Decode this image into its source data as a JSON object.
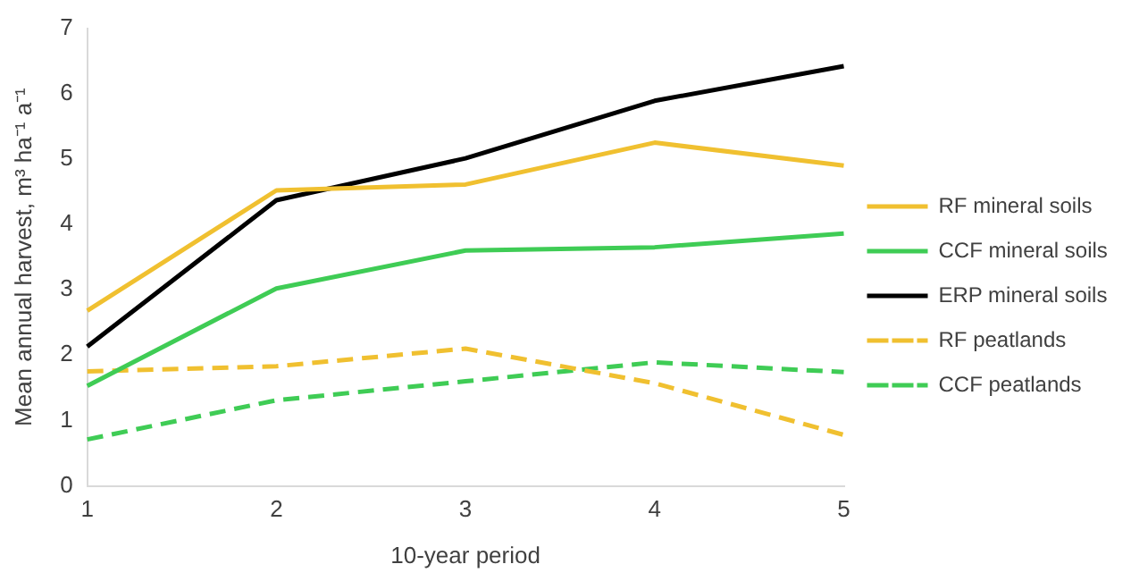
{
  "chart_data": {
    "type": "line",
    "xlabel": "10-year period",
    "ylabel": "Mean annual harvest, m³ ha⁻¹ a⁻¹",
    "categories": [
      "1",
      "2",
      "3",
      "4",
      "5"
    ],
    "series": [
      {
        "name": "RF mineral soils",
        "color": "#f0c030",
        "line_style": "solid",
        "values": [
          2.68,
          4.52,
          4.61,
          5.25,
          4.9
        ]
      },
      {
        "name": "CCF mineral soils",
        "color": "#3fcc55",
        "line_style": "solid",
        "values": [
          1.53,
          3.02,
          3.6,
          3.65,
          3.86
        ]
      },
      {
        "name": "ERP mineral soils",
        "color": "#000000",
        "line_style": "solid",
        "values": [
          2.13,
          4.37,
          5.01,
          5.89,
          6.42
        ]
      },
      {
        "name": "RF peatlands",
        "color": "#f0c030",
        "line_style": "dashed",
        "values": [
          1.75,
          1.83,
          2.1,
          1.57,
          0.78
        ]
      },
      {
        "name": "CCF peatlands",
        "color": "#3fcc55",
        "line_style": "dashed",
        "values": [
          0.71,
          1.31,
          1.6,
          1.89,
          1.74
        ]
      }
    ],
    "ylim": [
      0,
      7
    ],
    "yticks": [
      0,
      1,
      2,
      3,
      4,
      5,
      6,
      7
    ],
    "grid": false,
    "legend": "right",
    "marker": "none"
  }
}
